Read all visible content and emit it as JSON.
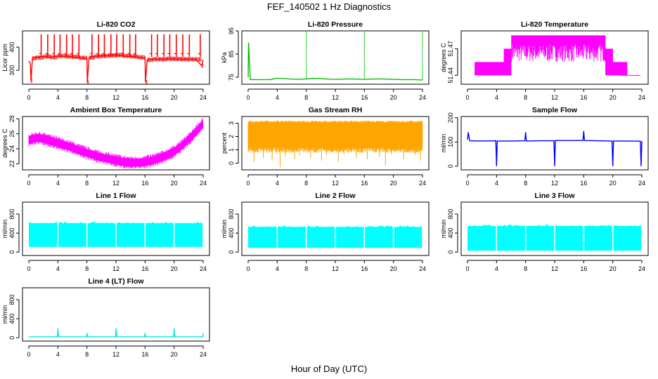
{
  "figure": {
    "title": "FEF_140502  1 Hz Diagnostics",
    "xlabel": "Hour of Day (UTC)"
  },
  "chart_data": [
    {
      "id": "co2",
      "type": "line",
      "title": "Li-820 CO2",
      "ylabel": "Licor ppm",
      "color": "#ff0000",
      "xlim": [
        0,
        24
      ],
      "xticks": [
        0,
        4,
        8,
        12,
        16,
        20,
        24
      ],
      "ylim": [
        240,
        470
      ],
      "yticks": [
        300,
        400
      ],
      "series": [
        {
          "x": [
            0,
            0.2,
            0.3,
            0.5,
            1,
            2,
            3,
            4,
            5,
            6,
            7,
            8,
            8.05,
            8.3,
            9,
            10,
            11,
            12,
            13,
            14,
            15,
            16,
            16.05,
            16.3,
            17,
            18,
            19,
            20,
            21,
            22,
            23,
            23.8,
            24
          ],
          "y": [
            340,
            330,
            255,
            352,
            355,
            360,
            356,
            362,
            360,
            358,
            354,
            350,
            248,
            355,
            360,
            362,
            364,
            366,
            362,
            360,
            356,
            352,
            250,
            345,
            348,
            348,
            350,
            349,
            348,
            348,
            347,
            320,
            345
          ]
        }
      ],
      "spikes": {
        "x": [
          1.7,
          2.6,
          3.5,
          4.3,
          5.2,
          6.0,
          6.9,
          8.7,
          9.6,
          10.4,
          11.3,
          12.1,
          13.0,
          13.9,
          14.7,
          16.9,
          17.7,
          18.6,
          19.4,
          20.3,
          21.2,
          22.1,
          23.6
        ],
        "y": 455
      }
    },
    {
      "id": "pressure",
      "type": "line",
      "title": "Li-820 Pressure",
      "ylabel": "kPa",
      "color": "#00c000",
      "xlim": [
        0,
        24
      ],
      "xticks": [
        0,
        4,
        8,
        12,
        16,
        20,
        24
      ],
      "ylim": [
        72,
        95
      ],
      "yticks": [
        75,
        85,
        95
      ],
      "series": [
        {
          "x": [
            0,
            0.05,
            0.3,
            1,
            2,
            3,
            4,
            5,
            6,
            7,
            8,
            9,
            10,
            11,
            12,
            13,
            14,
            15,
            16,
            17,
            18,
            19,
            20,
            21,
            22,
            23,
            24
          ],
          "y": [
            75,
            90,
            74,
            74,
            74,
            74,
            74.6,
            74.4,
            74.2,
            74.1,
            74.3,
            74.5,
            74.4,
            74.2,
            74.1,
            74.2,
            74.3,
            74.2,
            74.1,
            74.2,
            74.3,
            74.2,
            74.1,
            74.0,
            74.0,
            74.0,
            73.8
          ]
        }
      ],
      "spikes": {
        "x": [
          8,
          16,
          24
        ],
        "y": 95
      }
    },
    {
      "id": "licor_temp",
      "type": "line",
      "title": "Li-820 Temperature",
      "ylabel": "degrees C",
      "color": "#ff00ff",
      "xlim": [
        0,
        24
      ],
      "xticks": [
        0,
        4,
        8,
        12,
        16,
        20,
        24
      ],
      "ylim": [
        51.43,
        51.49
      ],
      "yticks": [
        51.44,
        51.47
      ],
      "levels": [
        51.44,
        51.455,
        51.47,
        51.485
      ],
      "series": [
        {
          "x": [
            0,
            1,
            2,
            3,
            4,
            5,
            6,
            7,
            8,
            9,
            10,
            11,
            12,
            13,
            14,
            15,
            16,
            17,
            18,
            19,
            20,
            21,
            22,
            23,
            24
          ],
          "y": [
            51.44,
            51.455,
            51.455,
            51.455,
            51.455,
            51.47,
            51.485,
            51.485,
            51.485,
            51.485,
            51.485,
            51.485,
            51.485,
            51.485,
            51.485,
            51.485,
            51.485,
            51.485,
            51.485,
            51.47,
            51.455,
            51.455,
            51.44,
            51.44,
            51.44
          ]
        }
      ]
    },
    {
      "id": "box_temp",
      "type": "line",
      "title": "Ambient Box Temperature",
      "ylabel": "degrees C",
      "color": "#ff00ff",
      "xlim": [
        0,
        24
      ],
      "xticks": [
        0,
        4,
        8,
        12,
        16,
        20,
        24
      ],
      "ylim": [
        21.2,
        28.3
      ],
      "yticks": [
        22,
        24,
        26,
        28
      ],
      "series": [
        {
          "x": [
            0,
            1,
            2,
            3,
            4,
            5,
            6,
            7,
            8,
            9,
            10,
            11,
            12,
            13,
            14,
            15,
            16,
            17,
            18,
            19,
            20,
            21,
            22,
            23,
            24
          ],
          "y": [
            25.2,
            25.5,
            25.4,
            25.1,
            24.8,
            24.5,
            24.2,
            23.8,
            23.5,
            23.2,
            22.9,
            22.7,
            22.5,
            22.3,
            22.2,
            22.2,
            22.3,
            22.5,
            22.8,
            23.2,
            23.7,
            24.4,
            25.3,
            26.3,
            27.4
          ]
        }
      ]
    },
    {
      "id": "rh",
      "type": "line",
      "title": "Gas Stream RH",
      "ylabel": "percent",
      "color": "#ffa500",
      "xlim": [
        0,
        24
      ],
      "xticks": [
        0,
        4,
        8,
        12,
        16,
        20,
        24
      ],
      "ylim": [
        -0.5,
        3.5
      ],
      "yticks": [
        0,
        1,
        2,
        3
      ],
      "band": [
        1.2,
        3.2
      ],
      "series": [
        {
          "x": [
            0.2,
            0.8,
            1.3,
            2.1,
            2.6,
            3.3,
            3.9,
            4.4,
            5.1,
            5.8,
            6.4,
            7.1,
            7.9,
            8.6,
            9.3,
            10.1,
            10.8,
            11.6,
            12.4,
            13.2,
            14.1,
            14.9,
            15.6,
            16.4,
            17.2,
            18.1,
            18.9,
            19.7,
            20.5,
            21.4,
            22.2,
            23.0,
            23.7
          ],
          "y": [
            0.8,
            0.1,
            0.9,
            0.4,
            1.0,
            0.2,
            0.7,
            -0.3,
            0.5,
            0.8,
            0.3,
            0.6,
            1.0,
            0.4,
            0.9,
            0.2,
            0.6,
            0.9,
            0.1,
            0.7,
            1.0,
            0.4,
            0.8,
            0.3,
            0.9,
            0.5,
            -0.2,
            0.7,
            1.0,
            0.3,
            0.8,
            0.6,
            0.2
          ]
        }
      ]
    },
    {
      "id": "sample_flow",
      "type": "line",
      "title": "Sample Flow",
      "ylabel": "ml/min",
      "color": "#0000ff",
      "xlim": [
        0,
        24
      ],
      "xticks": [
        0,
        4,
        8,
        12,
        16,
        20,
        24
      ],
      "ylim": [
        -15,
        205
      ],
      "yticks": [
        0,
        100,
        200
      ],
      "series": [
        {
          "x": [
            0,
            0.1,
            0.3,
            2,
            3.9,
            4.0,
            4.1,
            6,
            7.9,
            8.0,
            8.1,
            10,
            11.9,
            12.0,
            12.1,
            14,
            15.9,
            16.0,
            16.1,
            18,
            19.9,
            20.0,
            20.1,
            22,
            23.8,
            23.9,
            24.0
          ],
          "y": [
            110,
            140,
            105,
            104,
            105,
            0,
            104,
            104,
            105,
            140,
            104,
            105,
            105,
            0,
            106,
            106,
            106,
            145,
            106,
            105,
            104,
            0,
            104,
            104,
            103,
            0,
            103
          ]
        }
      ]
    },
    {
      "id": "line1",
      "type": "area",
      "title": "Line 1 Flow",
      "ylabel": "ml/min",
      "color": "#00ffff",
      "xlim": [
        0,
        24
      ],
      "xticks": [
        0,
        4,
        8,
        12,
        16,
        20,
        24
      ],
      "ylim": [
        -70,
        1050
      ],
      "yticks": [
        0,
        400,
        800
      ],
      "band": [
        110,
        640
      ],
      "gaps": [
        4,
        8,
        12,
        16,
        20,
        24
      ]
    },
    {
      "id": "line2",
      "type": "area",
      "title": "Line 2 Flow",
      "ylabel": "ml/min",
      "color": "#00ffff",
      "xlim": [
        0,
        24
      ],
      "xticks": [
        0,
        4,
        8,
        12,
        16,
        20,
        24
      ],
      "ylim": [
        -70,
        1050
      ],
      "yticks": [
        0,
        400,
        800
      ],
      "band": [
        90,
        560
      ],
      "gaps": [
        4,
        8,
        12,
        16,
        20,
        24
      ]
    },
    {
      "id": "line3",
      "type": "area",
      "title": "Line 3 Flow",
      "ylabel": "ml/min",
      "color": "#00ffff",
      "xlim": [
        0,
        24
      ],
      "xticks": [
        0,
        4,
        8,
        12,
        16,
        20,
        24
      ],
      "ylim": [
        -70,
        1050
      ],
      "yticks": [
        0,
        400,
        800
      ],
      "band": [
        30,
        580
      ],
      "gaps": [
        4,
        8,
        12,
        16,
        20,
        24
      ]
    },
    {
      "id": "line4",
      "type": "line",
      "title": "Line 4 (LT) Flow",
      "ylabel": "ml/min",
      "color": "#00e5e5",
      "xlim": [
        0,
        24
      ],
      "xticks": [
        0,
        4,
        8,
        12,
        16,
        20,
        24
      ],
      "ylim": [
        -70,
        1050
      ],
      "yticks": [
        0,
        400,
        800
      ],
      "series": [
        {
          "x": [
            0,
            3.95,
            4.0,
            4.1,
            7.95,
            8.0,
            8.1,
            11.95,
            12.0,
            12.1,
            15.95,
            16.0,
            16.1,
            19.95,
            20.0,
            20.1,
            23.95,
            24.0
          ],
          "y": [
            20,
            20,
            200,
            20,
            20,
            100,
            20,
            20,
            200,
            20,
            20,
            100,
            20,
            20,
            200,
            20,
            20,
            100
          ]
        }
      ]
    }
  ]
}
